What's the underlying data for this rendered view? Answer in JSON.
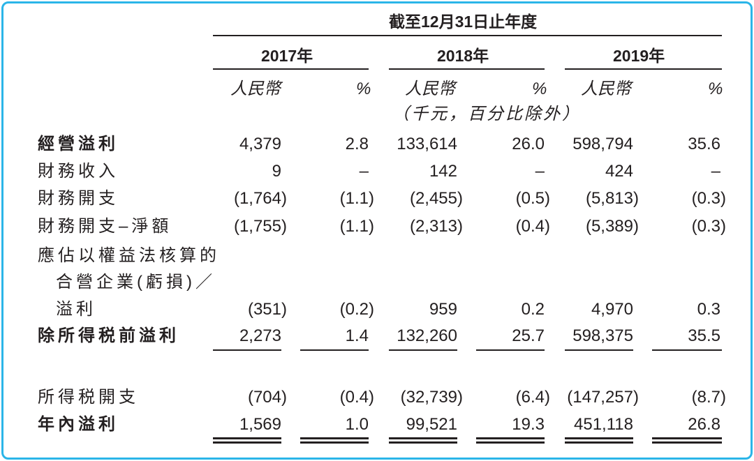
{
  "header": {
    "period": "截至12月31日止年度",
    "years": [
      "2017年",
      "2018年",
      "2019年"
    ],
    "currency_label": "人民幣",
    "percent_label": "%",
    "note": "（千元，百分比除外）"
  },
  "rows": [
    {
      "label": "經營溢利",
      "values": [
        "4,379",
        "2.8",
        "133,614",
        "26.0",
        "598,794",
        "35.6"
      ]
    },
    {
      "label": "財務收入",
      "values": [
        "9",
        "–",
        "142",
        "–",
        "424",
        "–"
      ]
    },
    {
      "label": "財務開支",
      "values": [
        "(1,764)",
        "(1.1)",
        "(2,455)",
        "(0.5)",
        "(5,813)",
        "(0.3)"
      ]
    },
    {
      "label": "財務開支–淨額",
      "values": [
        "(1,755)",
        "(1.1)",
        "(2,313)",
        "(0.4)",
        "(5,389)",
        "(0.3)"
      ]
    },
    {
      "label_lines": [
        "應佔以權益法核算的",
        "合營企業(虧損)／",
        "溢利"
      ],
      "values": [
        "(351)",
        "(0.2)",
        "959",
        "0.2",
        "4,970",
        "0.3"
      ]
    },
    {
      "label": "除所得税前溢利",
      "values": [
        "2,273",
        "1.4",
        "132,260",
        "25.7",
        "598,375",
        "35.5"
      ]
    },
    {
      "label": "所得税開支",
      "values": [
        "(704)",
        "(0.4)",
        "(32,739)",
        "(6.4)",
        "(147,257)",
        "(8.7)"
      ]
    },
    {
      "label": "年內溢利",
      "values": [
        "1,569",
        "1.0",
        "99,521",
        "19.3",
        "451,118",
        "26.8"
      ]
    }
  ]
}
